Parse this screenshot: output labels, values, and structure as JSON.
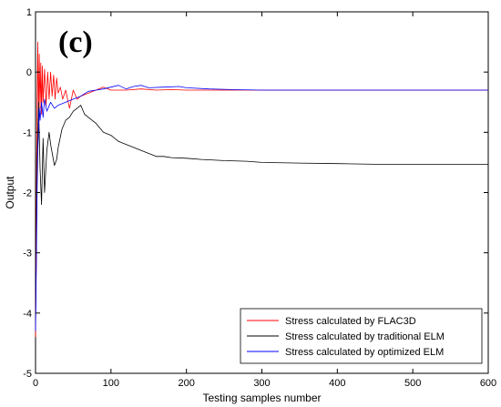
{
  "chart_data": {
    "type": "line",
    "panel_label": "(c)",
    "title": "",
    "xlabel": "Testing samples number",
    "ylabel": "Output",
    "xlim": [
      0,
      600
    ],
    "ylim": [
      -5,
      1
    ],
    "xticks": [
      0,
      100,
      200,
      300,
      400,
      500,
      600
    ],
    "yticks": [
      1,
      0,
      -1,
      -2,
      -3,
      -4,
      -5
    ],
    "grid": false,
    "legend_position": "bottom-right",
    "series": [
      {
        "name": "Stress calculated by FLAC3D",
        "color": "#ff0000",
        "x": [
          0,
          1,
          2,
          3,
          4,
          5,
          6,
          7,
          8,
          9,
          10,
          12,
          14,
          16,
          18,
          20,
          22,
          24,
          26,
          28,
          30,
          33,
          36,
          40,
          45,
          50,
          55,
          60,
          70,
          80,
          90,
          100,
          120,
          140,
          160,
          180,
          200,
          230,
          260,
          300,
          340,
          400,
          500,
          600
        ],
        "values": [
          -4.4,
          -2.5,
          -0.5,
          0.5,
          -0.9,
          0.3,
          -0.6,
          0.15,
          -0.7,
          0.1,
          -0.5,
          0.05,
          -0.55,
          0.0,
          -0.45,
          0.0,
          -0.4,
          -0.05,
          -0.45,
          -0.1,
          -0.35,
          -0.25,
          -0.45,
          -0.3,
          -0.6,
          -0.3,
          -0.45,
          -0.4,
          -0.35,
          -0.3,
          -0.25,
          -0.3,
          -0.3,
          -0.28,
          -0.3,
          -0.29,
          -0.3,
          -0.3,
          -0.3,
          -0.3,
          -0.3,
          -0.3,
          -0.3,
          -0.3
        ]
      },
      {
        "name": "Stress calculated by traditional ELM",
        "color": "#000000",
        "x": [
          0,
          1,
          2,
          4,
          6,
          8,
          10,
          12,
          15,
          18,
          20,
          25,
          28,
          30,
          35,
          40,
          45,
          50,
          55,
          60,
          65,
          70,
          80,
          90,
          100,
          110,
          120,
          130,
          140,
          150,
          160,
          170,
          180,
          200,
          220,
          250,
          280,
          300,
          350,
          400,
          450,
          500,
          550,
          600
        ],
        "values": [
          -4.2,
          -3.2,
          -1.5,
          -0.5,
          -1.6,
          -2.2,
          -1.1,
          -2.0,
          -1.3,
          -1.0,
          -1.2,
          -1.55,
          -1.45,
          -1.25,
          -0.95,
          -0.8,
          -0.75,
          -0.65,
          -0.6,
          -0.55,
          -0.7,
          -0.75,
          -0.85,
          -1.0,
          -1.05,
          -1.15,
          -1.2,
          -1.25,
          -1.3,
          -1.35,
          -1.4,
          -1.4,
          -1.42,
          -1.43,
          -1.45,
          -1.47,
          -1.48,
          -1.5,
          -1.51,
          -1.52,
          -1.53,
          -1.53,
          -1.53,
          -1.53
        ]
      },
      {
        "name": "Stress calculated by optimized ELM",
        "color": "#0000ff",
        "x": [
          0,
          1,
          2,
          3,
          4,
          5,
          6,
          8,
          10,
          12,
          15,
          20,
          25,
          30,
          40,
          50,
          60,
          70,
          80,
          90,
          100,
          110,
          120,
          130,
          140,
          150,
          170,
          190,
          200,
          230,
          260,
          300,
          350,
          400,
          500,
          600
        ],
        "values": [
          -4.3,
          -3.3,
          -2.0,
          -1.3,
          -1.0,
          -0.6,
          -0.8,
          -0.5,
          -0.75,
          -0.45,
          -0.65,
          -0.5,
          -0.6,
          -0.55,
          -0.5,
          -0.45,
          -0.4,
          -0.32,
          -0.3,
          -0.28,
          -0.25,
          -0.22,
          -0.28,
          -0.24,
          -0.22,
          -0.26,
          -0.25,
          -0.24,
          -0.26,
          -0.28,
          -0.29,
          -0.3,
          -0.3,
          -0.3,
          -0.3,
          -0.3
        ]
      }
    ]
  }
}
